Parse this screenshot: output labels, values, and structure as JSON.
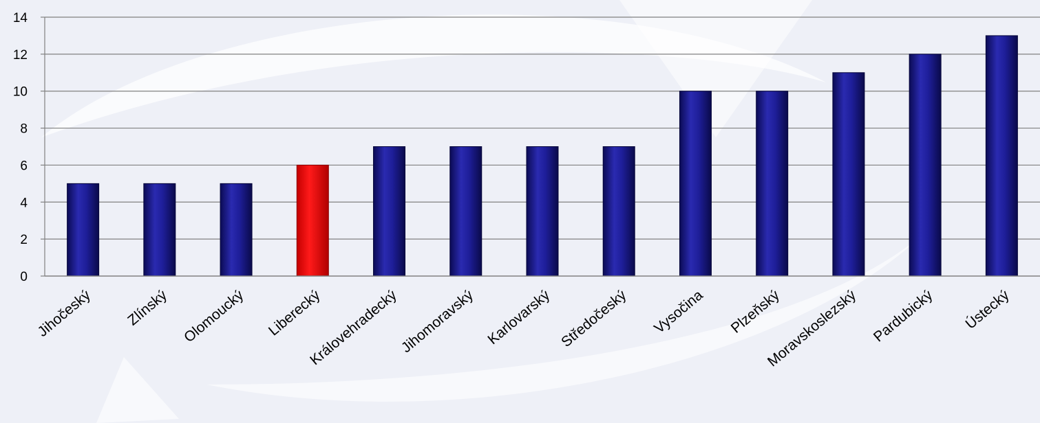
{
  "chart_data": {
    "type": "bar",
    "categories": [
      "Jihočeský",
      "Zlínský",
      "Olomoucký",
      "Liberecký",
      "Královehradecký",
      "Jihomoravský",
      "Karlovarský",
      "Středočeský",
      "Vysočina",
      "Plzeňský",
      "Moravskoslezský",
      "Pardubický",
      "Ústecký"
    ],
    "values": [
      5,
      5,
      5,
      6,
      7,
      7,
      7,
      7,
      10,
      10,
      11,
      12,
      13
    ],
    "highlight_category": "Liberecký",
    "colors": {
      "bar": "#1a1a8c",
      "highlight": "#ff0000",
      "grid": "#808080"
    },
    "ylim": [
      0,
      14
    ],
    "yticks": [
      0,
      2,
      4,
      6,
      8,
      10,
      12,
      14
    ],
    "grid": true,
    "title": "",
    "xlabel": "",
    "ylabel": ""
  }
}
